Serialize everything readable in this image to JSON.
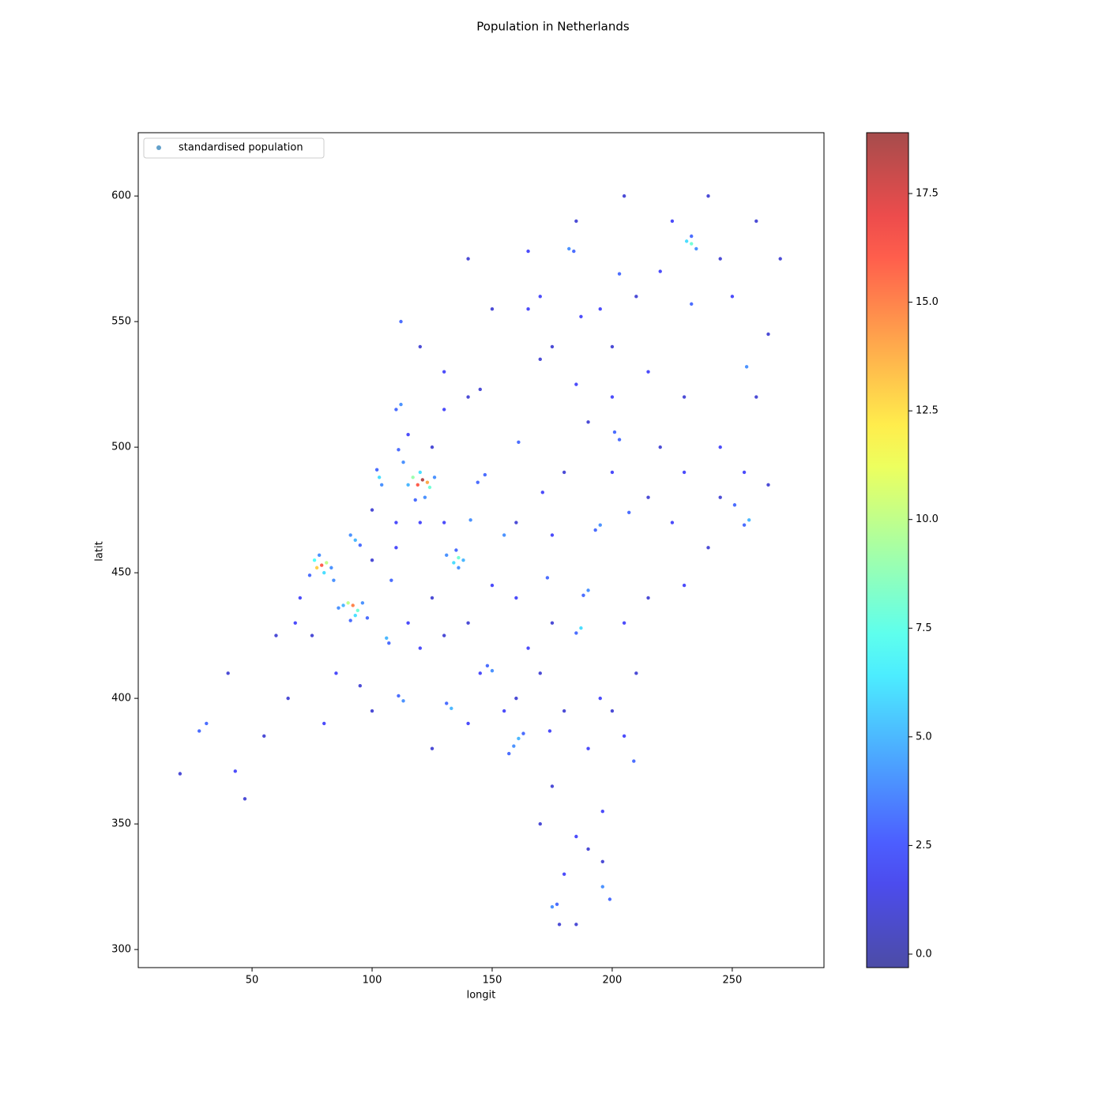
{
  "chart_data": {
    "type": "scatter",
    "title": "Population in Netherlands",
    "x_label": "longit",
    "y_label": "latit",
    "xlim": [
      2.6,
      288.2
    ],
    "ylim": [
      292.8,
      625.2
    ],
    "xticks": [
      50,
      100,
      150,
      200,
      250
    ],
    "yticks": [
      300,
      350,
      400,
      450,
      500,
      550,
      600
    ],
    "clim": [
      -0.31,
      18.9
    ],
    "cticks": [
      {
        "value": 0,
        "label": "0.0"
      },
      2.5,
      {
        "value": 5,
        "label": "5.0"
      },
      7.5,
      {
        "value": 10,
        "label": "10.0"
      },
      12.5,
      {
        "value": 15,
        "label": "15.0"
      },
      17.5
    ],
    "colormap": "jet",
    "alpha": 0.7,
    "legend_position": "upper left",
    "legend_marker_color": "#1f77b4",
    "series": [
      {
        "name": "standardised population",
        "x": [
          20,
          60,
          40,
          70,
          65,
          80,
          95,
          120,
          140,
          160,
          175,
          150,
          125,
          110,
          100,
          130,
          160,
          175,
          180,
          200,
          215,
          225,
          240,
          230,
          215,
          205,
          210,
          195,
          180,
          190,
          175,
          185,
          170,
          140,
          125,
          100,
          85,
          55,
          47,
          260,
          245,
          230,
          215,
          200,
          185,
          170,
          165,
          175,
          195,
          210,
          220,
          245,
          260,
          250,
          265,
          270,
          240,
          225,
          205,
          185,
          165,
          150,
          140,
          255,
          265,
          245,
          230,
          220,
          200,
          190,
          140,
          130,
          120,
          115,
          130,
          145,
          125,
          110,
          120,
          100,
          68,
          75,
          115,
          130,
          145,
          160,
          155,
          200,
          205,
          196,
          180,
          185,
          190,
          170,
          178,
          103,
          104,
          102,
          93,
          91,
          95,
          84,
          106,
          107,
          108,
          113,
          111,
          112,
          110,
          112,
          141,
          144,
          147,
          155,
          195,
          193,
          190,
          188,
          187,
          185,
          203,
          201,
          257,
          255,
          251,
          207,
          182,
          184,
          203,
          233,
          256,
          161,
          159,
          163,
          157,
          133,
          131,
          113,
          111,
          150,
          148,
          175,
          177,
          196,
          199,
          209,
          31,
          28,
          43,
          196,
          174,
          165,
          173,
          161,
          187,
          170,
          171,
          233,
          231,
          235,
          233,
          136,
          134,
          138,
          131,
          136,
          135,
          92,
          90,
          94,
          93,
          88,
          96,
          86,
          91,
          98,
          79,
          77,
          81,
          76,
          80,
          83,
          74,
          78,
          121,
          119,
          123,
          117,
          124,
          120,
          115,
          126,
          122,
          118
        ],
        "values": [
          370,
          425,
          410,
          440,
          400,
          390,
          405,
          420,
          430,
          440,
          430,
          445,
          440,
          460,
          475,
          470,
          470,
          465,
          490,
          490,
          480,
          470,
          460,
          445,
          440,
          430,
          410,
          400,
          395,
          380,
          365,
          345,
          410,
          390,
          380,
          395,
          410,
          385,
          360,
          520,
          500,
          520,
          530,
          540,
          525,
          535,
          555,
          540,
          555,
          560,
          570,
          575,
          590,
          560,
          545,
          575,
          600,
          590,
          600,
          590,
          578,
          555,
          575,
          490,
          485,
          480,
          490,
          500,
          520,
          510,
          520,
          530,
          540,
          505,
          515,
          523,
          500,
          470,
          470,
          455,
          430,
          425,
          430,
          425,
          410,
          400,
          395,
          395,
          385,
          335,
          330,
          310,
          340,
          350,
          310,
          488,
          485,
          491,
          463,
          465,
          461,
          447,
          424,
          422,
          447,
          494,
          499,
          517,
          515,
          550,
          471,
          486,
          489,
          465,
          469,
          467,
          443,
          441,
          428,
          426,
          503,
          506,
          471,
          469,
          477,
          474,
          579,
          578,
          569,
          557,
          532,
          384,
          381,
          386,
          378,
          396,
          398,
          399,
          401,
          411,
          413,
          317,
          318,
          325,
          320,
          375,
          390,
          387,
          371,
          355,
          387,
          420,
          448,
          502,
          552,
          560,
          482,
          581,
          582,
          579,
          584,
          456,
          454,
          455,
          457,
          452,
          459,
          437,
          438,
          435,
          433,
          437,
          438,
          436,
          431,
          432,
          453,
          452,
          454,
          455,
          450,
          452,
          449,
          457,
          487,
          485,
          486,
          488,
          484,
          490,
          485,
          488,
          480,
          479
        ],
        "c": [
          1,
          1,
          1,
          2,
          1,
          2,
          1,
          2,
          1,
          2,
          1,
          2,
          1,
          2,
          1,
          2,
          1,
          2,
          1,
          2,
          1,
          2,
          1,
          2,
          1,
          2,
          1,
          2,
          1,
          2,
          1,
          2,
          1,
          2,
          1,
          1,
          2,
          1,
          1,
          1,
          2,
          1,
          2,
          1,
          2,
          1,
          2,
          1,
          2,
          1,
          2,
          1,
          1,
          2,
          1,
          1,
          1,
          2,
          1,
          1,
          2,
          1,
          1,
          2,
          1,
          1,
          2,
          1,
          2,
          1,
          1,
          2,
          1,
          2,
          2,
          1,
          1,
          2,
          2,
          1,
          2,
          1,
          2,
          1,
          2,
          1,
          2,
          1,
          2,
          1,
          2,
          1,
          1,
          1,
          1,
          6,
          4,
          3,
          5,
          4,
          3,
          4,
          5,
          3,
          3,
          4,
          3,
          4,
          3,
          3,
          4,
          3,
          3,
          4,
          4,
          3,
          4,
          3,
          6,
          3,
          3,
          3,
          5,
          3,
          3,
          3,
          4,
          3,
          3,
          3,
          4,
          5,
          4,
          3,
          3,
          5,
          3,
          4,
          3,
          4,
          3,
          4,
          3,
          4,
          3,
          3,
          3,
          3,
          2,
          2,
          2,
          2,
          3,
          3,
          2,
          2,
          2,
          8,
          6,
          4,
          3,
          8,
          6,
          5,
          4,
          4,
          3,
          15,
          10,
          8,
          6,
          5,
          4,
          4,
          3,
          3,
          16,
          13,
          10,
          7,
          6,
          4,
          3,
          4,
          18.5,
          16,
          14,
          9,
          8,
          6,
          5,
          4,
          4,
          3
        ]
      }
    ]
  }
}
